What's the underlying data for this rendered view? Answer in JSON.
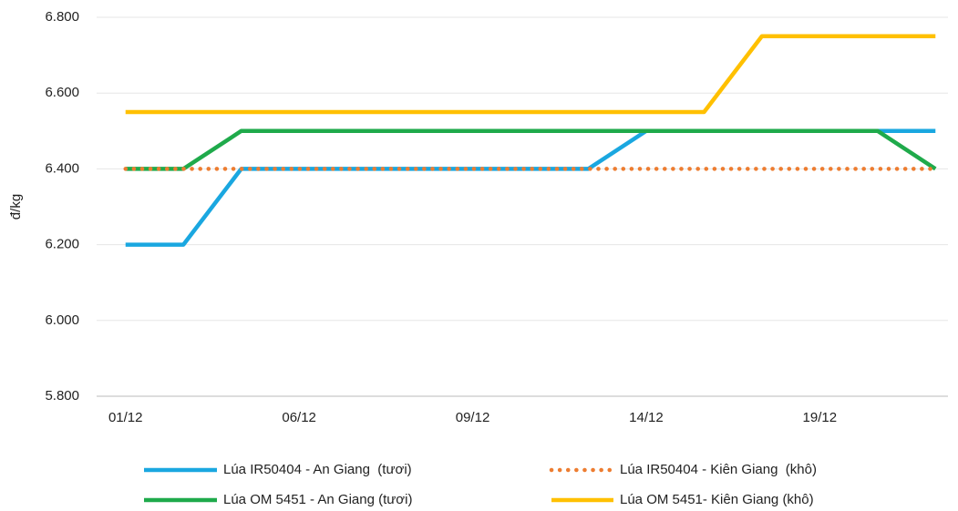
{
  "chart_data": {
    "type": "line",
    "y_label": "đ/kg",
    "categories": [
      "01/12",
      null,
      null,
      "06/12",
      null,
      null,
      "09/12",
      null,
      null,
      "14/12",
      null,
      null,
      "19/12",
      null,
      null
    ],
    "series": [
      {
        "name": "Lúa IR50404 - An Giang  (tươi)",
        "color": "#1aa7e0",
        "style": "solid",
        "values": [
          6200,
          6200,
          6400,
          6400,
          6400,
          6400,
          6400,
          6400,
          6400,
          6500,
          6500,
          6500,
          6500,
          6500,
          6500
        ]
      },
      {
        "name": "Lúa IR50404 - Kiên Giang  (khô)",
        "color": "#ed7d31",
        "style": "dotted",
        "values": [
          6400,
          6400,
          6400,
          6400,
          6400,
          6400,
          6400,
          6400,
          6400,
          6400,
          6400,
          6400,
          6400,
          6400,
          6400
        ]
      },
      {
        "name": "Lúa OM 5451 - An Giang (tươi)",
        "color": "#1faa4b",
        "style": "solid",
        "values": [
          6400,
          6400,
          6500,
          6500,
          6500,
          6500,
          6500,
          6500,
          6500,
          6500,
          6500,
          6500,
          6500,
          6500,
          6400
        ]
      },
      {
        "name": "Lúa OM 5451- Kiên Giang (khô)",
        "color": "#ffc000",
        "style": "solid",
        "values": [
          6550,
          6550,
          6550,
          6550,
          6550,
          6550,
          6550,
          6550,
          6550,
          6550,
          6550,
          6750,
          6750,
          6750,
          6750
        ]
      }
    ],
    "ylim": [
      5800,
      6800
    ],
    "yticks": [
      {
        "value": 5800,
        "label": "5.800"
      },
      {
        "value": 6000,
        "label": "6.000"
      },
      {
        "value": 6200,
        "label": "6.200"
      },
      {
        "value": 6400,
        "label": "6.400"
      },
      {
        "value": 6600,
        "label": "6.600"
      },
      {
        "value": 6800,
        "label": "6.800"
      }
    ],
    "grid": true,
    "legend": "bottom"
  }
}
